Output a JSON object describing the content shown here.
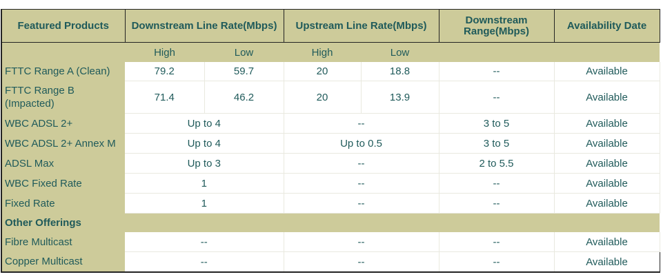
{
  "headers": {
    "featured": "Featured Products",
    "downstream": "Downstream Line Rate(Mbps)",
    "upstream": "Upstream Line Rate(Mbps)",
    "range": "Downstream Range(Mbps)",
    "availability": "Availability Date"
  },
  "sub": {
    "ds_high": "High",
    "ds_low": "Low",
    "us_high": "High",
    "us_low": "Low"
  },
  "rows": {
    "fttc_a": {
      "name": "FTTC Range A (Clean)",
      "ds_high": "79.2",
      "ds_low": "59.7",
      "us_high": "20",
      "us_low": "18.8",
      "range": "--",
      "avail": "Available"
    },
    "fttc_b": {
      "name": "FTTC Range B (Impacted)",
      "ds_high": "71.4",
      "ds_low": "46.2",
      "us_high": "20",
      "us_low": "13.9",
      "range": "--",
      "avail": "Available"
    },
    "wbc_adsl2": {
      "name": "WBC ADSL 2+",
      "ds": "Up to 4",
      "us": "--",
      "range": "3 to 5",
      "avail": "Available"
    },
    "wbc_adsl2m": {
      "name": "WBC ADSL 2+ Annex M",
      "ds": "Up to 4",
      "us": "Up to 0.5",
      "range": "3 to 5",
      "avail": "Available"
    },
    "adsl_max": {
      "name": "ADSL Max",
      "ds": "Up to 3",
      "us": "--",
      "range": "2 to 5.5",
      "avail": "Available"
    },
    "wbc_fixed": {
      "name": "WBC Fixed Rate",
      "ds": "1",
      "us": "--",
      "range": "--",
      "avail": "Available"
    },
    "fixed": {
      "name": "Fixed Rate",
      "ds": "1",
      "us": "--",
      "range": "--",
      "avail": "Available"
    }
  },
  "section": "Other Offerings",
  "other": {
    "fibre": {
      "name": "Fibre Multicast",
      "ds": "--",
      "us": "--",
      "range": "--",
      "avail": "Available"
    },
    "copper": {
      "name": "Copper Multicast",
      "ds": "--",
      "us": "--",
      "range": "--",
      "avail": "Available"
    }
  }
}
